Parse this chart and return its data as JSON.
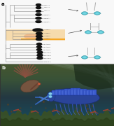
{
  "fig_width": 1.63,
  "fig_height": 1.8,
  "dpi": 100,
  "panel_a_bg": "#ffffff",
  "border_color": "#000000",
  "label_a": "a",
  "label_b": "b",
  "label_fontsize": 5,
  "tree_lc": "#888888",
  "tree_lw": 0.4,
  "highlight_color": "#f5a623",
  "highlight_alpha": 0.35,
  "black_shape": "#111111",
  "orange_bar": "#f5a623",
  "arrow_color": "#555555",
  "teal_color": "#5bc8d4",
  "teal_dark": "#2a8fa0",
  "diagram_gray": "#aaaaaa",
  "water_sky": "#1a4a5a",
  "water_deep": "#1a3a30",
  "water_mid": "#2a5040",
  "seafloor": "#3a5528",
  "seafloor2": "#2a4520",
  "ray_color": "#8ab8b0",
  "creature1_body": "#8a6050",
  "creature1_fin": "#7a4535",
  "creature1_head": "#6a3a2a",
  "creature2_body": "#3355bb",
  "creature2_plate": "#4477dd",
  "creature2_edge": "#223388",
  "creature2_leg": "#3366cc",
  "creature2_eye": "#88ccff",
  "creature2_highlight": "#6699ee",
  "small_reddish": "#9a4030",
  "debris_color": "#4a3a20",
  "bg_dark_shape": "#1a2a20"
}
